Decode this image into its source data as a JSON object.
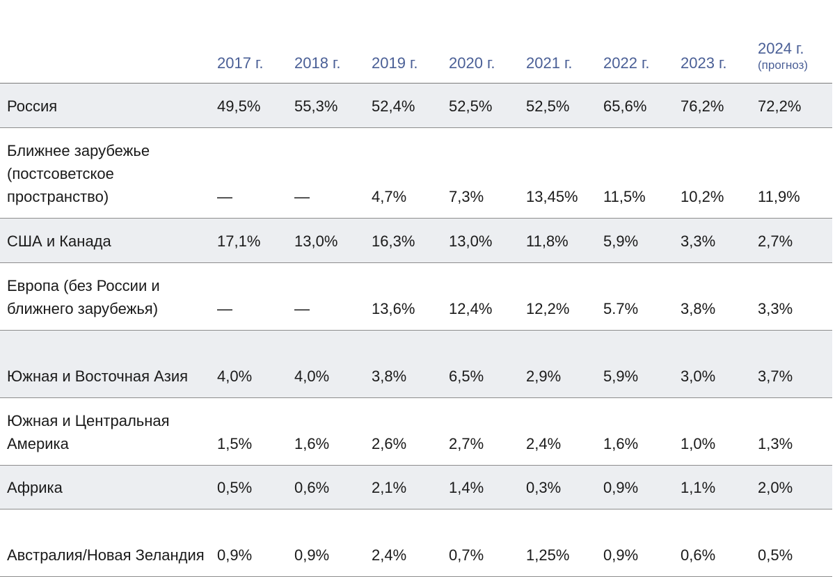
{
  "header": {
    "years": [
      "2017 г.",
      "2018 г.",
      "2019 г.",
      "2020 г.",
      "2021 г.",
      "2022 г.",
      "2023 г."
    ],
    "last_year": "2024 г.",
    "last_note": "(прогноз)"
  },
  "rows": [
    {
      "label": "Россия",
      "values": [
        "49,5%",
        "55,3%",
        "52,4%",
        "52,5%",
        "52,5%",
        "65,6%",
        "76,2%",
        "72,2%"
      ]
    },
    {
      "label": "Ближнее зарубежье (постсоветское пространство)",
      "values": [
        "—",
        "—",
        "4,7%",
        "7,3%",
        "13,45%",
        "11,5%",
        "10,2%",
        "11,9%"
      ]
    },
    {
      "label": "США и Канада",
      "values": [
        "17,1%",
        "13,0%",
        "16,3%",
        "13,0%",
        "11,8%",
        "5,9%",
        "3,3%",
        "2,7%"
      ]
    },
    {
      "label": "Европа (без России и ближнего зарубежья)",
      "values": [
        "—",
        "—",
        "13,6%",
        "12,4%",
        "12,2%",
        "5.7%",
        "3,8%",
        "3,3%"
      ]
    },
    {
      "label": "Южная и Восточная Азия",
      "values": [
        "4,0%",
        "4,0%",
        "3,8%",
        "6,5%",
        "2,9%",
        "5,9%",
        "3,0%",
        "3,7%"
      ]
    },
    {
      "label": "Южная и Центральная Америка",
      "values": [
        "1,5%",
        "1,6%",
        "2,6%",
        "2,7%",
        "2,4%",
        "1,6%",
        "1,0%",
        "1,3%"
      ]
    },
    {
      "label": "Африка",
      "values": [
        "0,5%",
        "0,6%",
        "2,1%",
        "1,4%",
        "0,3%",
        "0,9%",
        "1,1%",
        "2,0%"
      ]
    },
    {
      "label": "Австралия/Новая Зеландия",
      "values": [
        "0,9%",
        "0,9%",
        "2,4%",
        "0,7%",
        "1,25%",
        "0,9%",
        "0,6%",
        "0,5%"
      ]
    }
  ]
}
